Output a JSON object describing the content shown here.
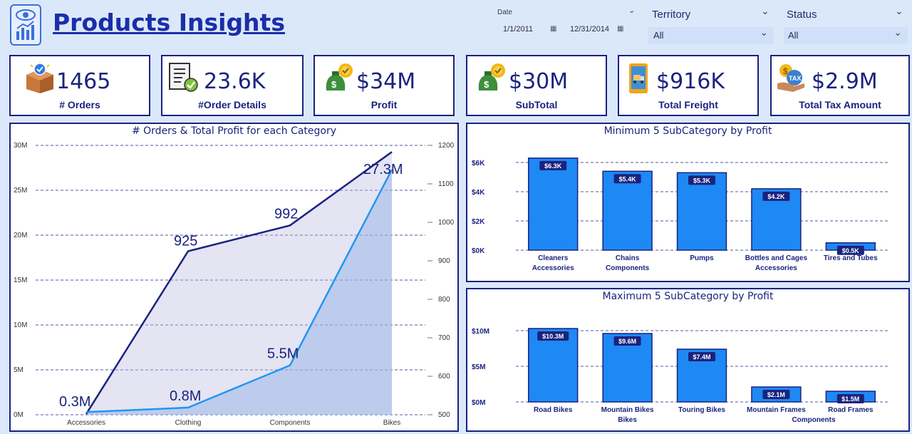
{
  "header": {
    "title": "Products Insights",
    "date": {
      "label": "Date",
      "start": "1/1/2011",
      "end": "12/31/2014"
    },
    "territory": {
      "label": "Territory",
      "value": "All"
    },
    "status": {
      "label": "Status",
      "value": "All"
    }
  },
  "kpis": [
    {
      "value": "1465",
      "label": "# Orders",
      "icon": "package-icon"
    },
    {
      "value": "23.6K",
      "label": "#Order Details",
      "icon": "document-check-icon"
    },
    {
      "value": "$34M",
      "label": "Profit",
      "icon": "money-bag-icon"
    },
    {
      "value": "$30M",
      "label": "SubTotal",
      "icon": "money-bag-icon"
    },
    {
      "value": "$916K",
      "label": "Total Freight",
      "icon": "phone-truck-icon"
    },
    {
      "value": "$2.9M",
      "label": "Total Tax Amount",
      "icon": "tax-icon"
    }
  ],
  "chart_data": [
    {
      "type": "area",
      "title": "# Orders & Total Profit for each Category",
      "categories": [
        "Accessories",
        "Clothing",
        "Components",
        "Bikes"
      ],
      "y_ticks": [
        "30M",
        "25M",
        "20M",
        "15M",
        "10M",
        "5M",
        "0M"
      ],
      "y2_ticks": [
        "1200",
        "1100",
        "1000",
        "900",
        "800",
        "700",
        "600",
        "500"
      ],
      "ylim": [
        0,
        30
      ],
      "y2lim": [
        500,
        1200
      ],
      "series": [
        {
          "axis": "secondary",
          "values": [
            502,
            925,
            992,
            1183
          ],
          "labels": [
            "",
            "925",
            "992",
            ""
          ],
          "color": "#1a237e"
        },
        {
          "axis": "primary",
          "values": [
            0.3,
            0.8,
            5.5,
            27.3
          ],
          "labels": [
            "0.3M",
            "0.8M",
            "5.5M",
            "27.3M"
          ],
          "color": "#2196f3"
        }
      ]
    },
    {
      "type": "bar",
      "title": "Minimum 5 SubCategory by Profit",
      "categories": [
        [
          "Cleaners",
          "Accessories"
        ],
        [
          "Chains",
          "Components"
        ],
        [
          "Pumps",
          ""
        ],
        [
          "Bottles and Cages",
          "Accessories"
        ],
        [
          "Tires and Tubes",
          ""
        ]
      ],
      "values": [
        6.3,
        5.4,
        5.3,
        4.2,
        0.5
      ],
      "labels": [
        "$6.3K",
        "$5.4K",
        "$5.3K",
        "$4.2K",
        "$0.5K"
      ],
      "y_ticks": [
        "$6K",
        "$4K",
        "$2K",
        "$0K"
      ],
      "ylim": [
        0,
        6
      ],
      "color": "#1e88f5"
    },
    {
      "type": "bar",
      "title": "Maximum 5 SubCategory by Profit",
      "categories": [
        [
          "Road Bikes",
          ""
        ],
        [
          "Mountain Bikes",
          "Bikes"
        ],
        [
          "Touring Bikes",
          ""
        ],
        [
          "Mountain Frames",
          ""
        ],
        [
          "Road Frames",
          ""
        ]
      ],
      "group_label": "Components",
      "values": [
        10.3,
        9.6,
        7.4,
        2.1,
        1.5
      ],
      "labels": [
        "$10.3M",
        "$9.6M",
        "$7.4M",
        "$2.1M",
        "$1.5M"
      ],
      "y_ticks": [
        "$10M",
        "$5M",
        "$0M"
      ],
      "ylim": [
        0,
        10
      ],
      "color": "#1e88f5"
    }
  ]
}
